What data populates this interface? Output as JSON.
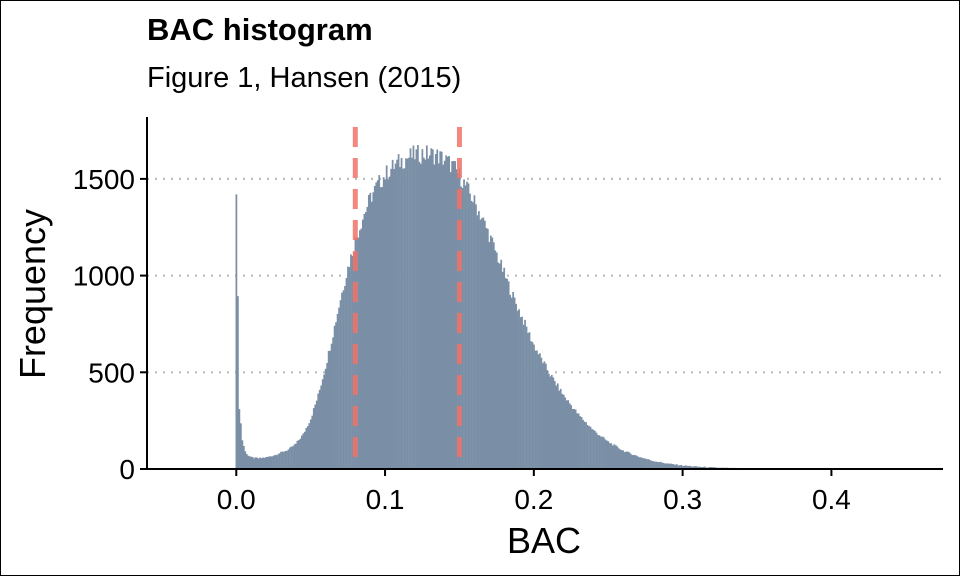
{
  "chart_data": {
    "type": "bar",
    "title": "BAC histogram",
    "subtitle": "Figure 1, Hansen (2015)",
    "xlabel": "BAC",
    "ylabel": "Frequency",
    "xlim": [
      -0.06,
      0.475
    ],
    "ylim": [
      0,
      1820
    ],
    "x_ticks": [
      0.0,
      0.1,
      0.2,
      0.3,
      0.4
    ],
    "x_tick_labels": [
      "0.0",
      "0.1",
      "0.2",
      "0.3",
      "0.4"
    ],
    "y_ticks": [
      0,
      500,
      1000,
      1500
    ],
    "y_tick_labels": [
      "0",
      "500",
      "1000",
      "1500"
    ],
    "grid": "horizontal dotted at 500, 1000, 1500",
    "bin_width": 0.001,
    "spike": {
      "x": 0.0,
      "value": 1420
    },
    "thresholds": [
      0.08,
      0.15
    ],
    "curve_knots": {
      "x": [
        0.0,
        0.002,
        0.004,
        0.006,
        0.008,
        0.01,
        0.015,
        0.02,
        0.025,
        0.03,
        0.035,
        0.04,
        0.045,
        0.05,
        0.055,
        0.06,
        0.065,
        0.07,
        0.075,
        0.08,
        0.085,
        0.09,
        0.095,
        0.1,
        0.105,
        0.11,
        0.115,
        0.12,
        0.125,
        0.13,
        0.135,
        0.14,
        0.145,
        0.15,
        0.155,
        0.16,
        0.165,
        0.17,
        0.175,
        0.18,
        0.185,
        0.19,
        0.195,
        0.2,
        0.21,
        0.22,
        0.23,
        0.24,
        0.25,
        0.26,
        0.27,
        0.28,
        0.29,
        0.3,
        0.31,
        0.32,
        0.33,
        0.34,
        0.35,
        0.36,
        0.38,
        0.4,
        0.42,
        0.44,
        0.46
      ],
      "values": [
        1420,
        320,
        150,
        90,
        70,
        60,
        55,
        60,
        70,
        85,
        100,
        130,
        180,
        260,
        380,
        530,
        700,
        880,
        1040,
        1180,
        1300,
        1400,
        1470,
        1520,
        1560,
        1590,
        1610,
        1625,
        1630,
        1628,
        1620,
        1600,
        1570,
        1520,
        1450,
        1380,
        1300,
        1210,
        1110,
        1010,
        910,
        820,
        730,
        640,
        500,
        380,
        280,
        200,
        140,
        95,
        65,
        42,
        28,
        18,
        12,
        8,
        5,
        3,
        2,
        1.5,
        0.8,
        0.4,
        0.2,
        0.1,
        0
      ]
    },
    "colors": {
      "bars": "#7a8fa6",
      "threshold": "#f0736a",
      "grid": "#bdbdbd",
      "axis": "#000000"
    }
  }
}
